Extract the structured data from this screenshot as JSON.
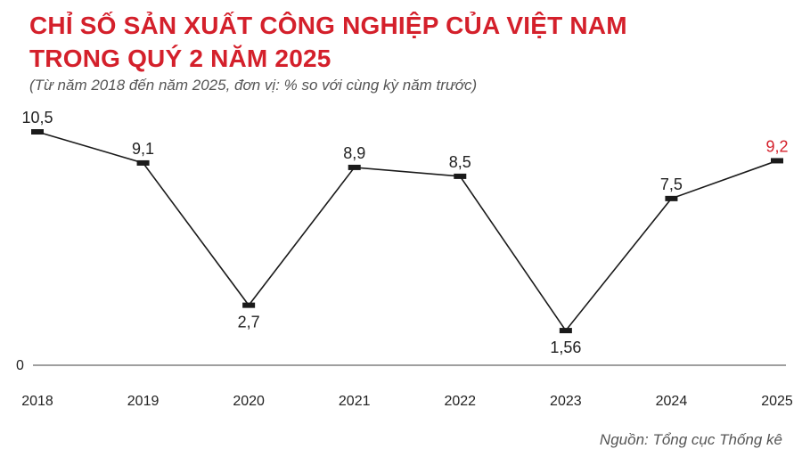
{
  "header": {
    "title_line1": "CHỈ SỐ SẢN XUẤT CÔNG NGHIỆP CỦA VIỆT NAM",
    "title_line2": "TRONG QUÝ 2 NĂM 2025",
    "subtitle": "(Từ năm 2018 đến năm 2025, đơn vị: % so với cùng kỳ năm trước)"
  },
  "footer": {
    "source": "Nguồn: Tổng cục Thống kê"
  },
  "colors": {
    "accent": "#d4202b",
    "line": "#1a1a1a",
    "text": "#222222"
  },
  "chart_data": {
    "type": "line",
    "title": "CHỈ SỐ SẢN XUẤT CÔNG NGHIỆP CỦA VIỆT NAM TRONG QUÝ 2 NĂM 2025",
    "subtitle": "(Từ năm 2018 đến năm 2025, đơn vị: % so với cùng kỳ năm trước)",
    "categories": [
      "2018",
      "2019",
      "2020",
      "2021",
      "2022",
      "2023",
      "2024",
      "2025"
    ],
    "values": [
      10.5,
      9.1,
      2.7,
      8.9,
      8.5,
      1.56,
      7.5,
      9.2
    ],
    "labels": [
      "10,5",
      "9,1",
      "2,7",
      "8,9",
      "8,5",
      "1,56",
      "7,5",
      "9,2"
    ],
    "label_positions": [
      "above",
      "above",
      "below",
      "above",
      "above",
      "below",
      "above",
      "above"
    ],
    "highlight_index": 7,
    "y_ticks": [
      0
    ],
    "y_tick_labels": [
      "0"
    ],
    "ylim": [
      0,
      10.5
    ],
    "grid": false,
    "xlabel": "",
    "ylabel": ""
  }
}
